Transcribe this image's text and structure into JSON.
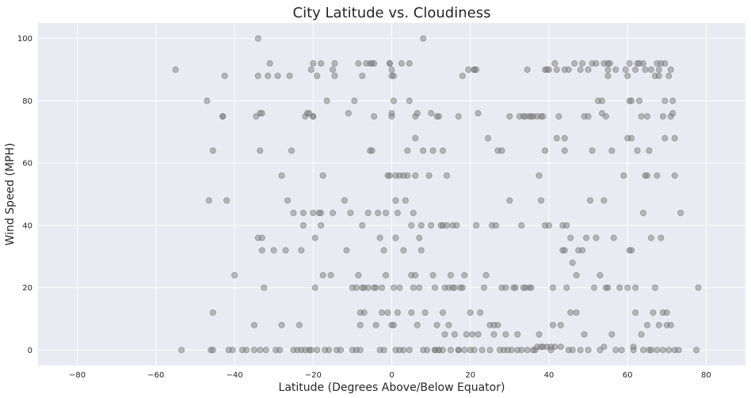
{
  "chart_data": {
    "type": "scatter",
    "title": "City Latitude vs. Cloudiness",
    "xlabel": "Latitude (Degrees Above/Below Equator)",
    "ylabel": "Wind Speed (MPH)",
    "xlim": [
      -90,
      90
    ],
    "ylim": [
      -5,
      105
    ],
    "xticks": [
      -80,
      -60,
      -40,
      -20,
      0,
      20,
      40,
      60,
      80
    ],
    "yticks": [
      0,
      20,
      40,
      60,
      80,
      100
    ],
    "grid": true,
    "colors": {
      "background": "#eaeaf2",
      "grid": "#ffffff",
      "marker": "#808080"
    },
    "points": [
      [
        -55,
        90
      ],
      [
        -53.5,
        0
      ],
      [
        -47,
        80
      ],
      [
        -46.5,
        48
      ],
      [
        -46,
        0
      ],
      [
        -45.5,
        0
      ],
      [
        -45.5,
        64
      ],
      [
        -45.5,
        12
      ],
      [
        -43,
        75
      ],
      [
        -43,
        75
      ],
      [
        -42.5,
        88
      ],
      [
        -42,
        48
      ],
      [
        -41.5,
        0
      ],
      [
        -40.5,
        0
      ],
      [
        -40,
        24
      ],
      [
        -38,
        0
      ],
      [
        -37,
        0
      ],
      [
        -35,
        0
      ],
      [
        -35,
        8
      ],
      [
        -34.5,
        75
      ],
      [
        -34,
        88
      ],
      [
        -34,
        36
      ],
      [
        -34,
        100
      ],
      [
        -33.5,
        0
      ],
      [
        -33.5,
        76
      ],
      [
        -33.5,
        64
      ],
      [
        -33,
        36
      ],
      [
        -33,
        76
      ],
      [
        -33,
        32
      ],
      [
        -32.5,
        20
      ],
      [
        -32,
        0
      ],
      [
        -31.5,
        88
      ],
      [
        -31,
        92
      ],
      [
        -30,
        32
      ],
      [
        -29.5,
        0
      ],
      [
        -29,
        88
      ],
      [
        -28.5,
        0
      ],
      [
        -28,
        8
      ],
      [
        -28,
        56
      ],
      [
        -27,
        32
      ],
      [
        -26.5,
        48
      ],
      [
        -26,
        88
      ],
      [
        -25.5,
        64
      ],
      [
        -25,
        44
      ],
      [
        -25,
        0
      ],
      [
        -24,
        0
      ],
      [
        -23.5,
        8
      ],
      [
        -23,
        0
      ],
      [
        -23,
        32
      ],
      [
        -22.5,
        40
      ],
      [
        -22.5,
        44
      ],
      [
        -22,
        75
      ],
      [
        -22,
        0
      ],
      [
        -21.5,
        76
      ],
      [
        -21,
        0
      ],
      [
        -21,
        76
      ],
      [
        -20.5,
        90
      ],
      [
        -20.5,
        0
      ],
      [
        -20,
        75
      ],
      [
        -20,
        92
      ],
      [
        -20,
        44
      ],
      [
        -20,
        75
      ],
      [
        -19.5,
        36
      ],
      [
        -19.5,
        20
      ],
      [
        -19,
        88
      ],
      [
        -19,
        0
      ],
      [
        -18.5,
        44
      ],
      [
        -18,
        92
      ],
      [
        -18,
        44
      ],
      [
        -18,
        40
      ],
      [
        -17.5,
        56
      ],
      [
        -17.5,
        24
      ],
      [
        -17,
        0
      ],
      [
        -16.5,
        80
      ],
      [
        -16,
        0
      ],
      [
        -15.5,
        24
      ],
      [
        -15,
        90
      ],
      [
        -15,
        44
      ],
      [
        -14.5,
        88
      ],
      [
        -14.5,
        92
      ],
      [
        -14,
        0
      ],
      [
        -13,
        0
      ],
      [
        -12,
        48
      ],
      [
        -11.5,
        32
      ],
      [
        -11,
        76
      ],
      [
        -10.5,
        44
      ],
      [
        -10,
        20
      ],
      [
        -10,
        0
      ],
      [
        -9.5,
        80
      ],
      [
        -9,
        0
      ],
      [
        -9,
        20
      ],
      [
        -8.5,
        24
      ],
      [
        -8.5,
        92
      ],
      [
        -8,
        0
      ],
      [
        -8,
        12
      ],
      [
        -8,
        8
      ],
      [
        -7.5,
        88
      ],
      [
        -7.5,
        20
      ],
      [
        -7.5,
        40
      ],
      [
        -7,
        12
      ],
      [
        -7,
        20
      ],
      [
        -6.5,
        92
      ],
      [
        -6,
        20
      ],
      [
        -6,
        44
      ],
      [
        -5.5,
        64
      ],
      [
        -5.5,
        92
      ],
      [
        -5,
        92
      ],
      [
        -5,
        64
      ],
      [
        -4.5,
        92
      ],
      [
        -4.5,
        20
      ],
      [
        -4.5,
        75
      ],
      [
        -4,
        20
      ],
      [
        -4,
        8
      ],
      [
        -3.5,
        44
      ],
      [
        -3,
        36
      ],
      [
        -3,
        0
      ],
      [
        -2.5,
        20
      ],
      [
        -2.5,
        12
      ],
      [
        -2,
        32
      ],
      [
        -2,
        0
      ],
      [
        -1.5,
        24
      ],
      [
        -1.5,
        44
      ],
      [
        -1,
        12
      ],
      [
        -1,
        56
      ],
      [
        -0.5,
        56
      ],
      [
        -0.5,
        92
      ],
      [
        -0.5,
        92
      ],
      [
        0,
        88
      ],
      [
        0,
        8
      ],
      [
        0,
        76
      ],
      [
        0,
        75
      ],
      [
        0,
        90
      ],
      [
        0.5,
        80
      ],
      [
        0.5,
        88
      ],
      [
        0.5,
        20
      ],
      [
        0.5,
        8
      ],
      [
        1,
        48
      ],
      [
        1,
        56
      ],
      [
        1,
        0
      ],
      [
        1,
        36
      ],
      [
        1.5,
        12
      ],
      [
        1.5,
        44
      ],
      [
        2,
        0
      ],
      [
        2,
        56
      ],
      [
        2,
        20
      ],
      [
        2.5,
        92
      ],
      [
        3,
        56
      ],
      [
        3,
        32
      ],
      [
        3,
        0
      ],
      [
        3.5,
        48
      ],
      [
        4,
        56
      ],
      [
        4,
        64
      ],
      [
        4.5,
        80
      ],
      [
        4.5,
        92
      ],
      [
        4.5,
        0
      ],
      [
        5,
        24
      ],
      [
        5,
        40
      ],
      [
        5,
        12
      ],
      [
        5.5,
        44
      ],
      [
        5.5,
        20
      ],
      [
        6,
        68
      ],
      [
        6,
        24
      ],
      [
        6,
        56
      ],
      [
        6,
        75
      ],
      [
        6.5,
        76
      ],
      [
        6.5,
        8
      ],
      [
        7,
        20
      ],
      [
        7,
        36
      ],
      [
        7.5,
        40
      ],
      [
        7.5,
        32
      ],
      [
        8,
        0
      ],
      [
        8,
        100
      ],
      [
        8,
        64
      ],
      [
        8.5,
        12
      ],
      [
        9,
        0
      ],
      [
        9.5,
        56
      ],
      [
        10,
        76
      ],
      [
        10,
        40
      ],
      [
        10.5,
        24
      ],
      [
        10.5,
        64
      ],
      [
        11,
        0
      ],
      [
        11,
        0
      ],
      [
        11,
        20
      ],
      [
        11.5,
        8
      ],
      [
        11.5,
        75
      ],
      [
        12,
        0
      ],
      [
        12,
        75
      ],
      [
        12,
        0
      ],
      [
        12.5,
        40
      ],
      [
        13,
        12
      ],
      [
        13,
        40
      ],
      [
        13,
        0
      ],
      [
        13,
        64
      ],
      [
        13.5,
        5
      ],
      [
        13.5,
        20
      ],
      [
        14,
        56
      ],
      [
        14,
        40
      ],
      [
        14.5,
        8
      ],
      [
        14.5,
        20
      ],
      [
        15,
        24
      ],
      [
        15,
        0
      ],
      [
        15.5,
        20
      ],
      [
        15.5,
        40
      ],
      [
        16,
        20
      ],
      [
        16,
        5
      ],
      [
        16.5,
        40
      ],
      [
        17,
        0
      ],
      [
        17,
        0
      ],
      [
        17,
        75
      ],
      [
        17.5,
        20
      ],
      [
        18,
        88
      ],
      [
        18,
        20
      ],
      [
        18.5,
        24
      ],
      [
        18.5,
        0
      ],
      [
        19,
        5
      ],
      [
        19.5,
        90
      ],
      [
        20,
        0
      ],
      [
        20,
        12
      ],
      [
        20.5,
        5
      ],
      [
        21,
        90
      ],
      [
        21,
        90
      ],
      [
        21,
        0
      ],
      [
        21.5,
        90
      ],
      [
        21.5,
        40
      ],
      [
        22,
        76
      ],
      [
        22,
        5
      ],
      [
        22.5,
        12
      ],
      [
        23,
        0
      ],
      [
        23.5,
        20
      ],
      [
        24,
        24
      ],
      [
        24.5,
        68
      ],
      [
        25,
        8
      ],
      [
        25,
        0
      ],
      [
        25.5,
        40
      ],
      [
        26,
        8
      ],
      [
        26,
        5
      ],
      [
        26.5,
        40
      ],
      [
        27,
        64
      ],
      [
        27,
        8
      ],
      [
        27.5,
        0
      ],
      [
        28,
        20
      ],
      [
        28,
        64
      ],
      [
        28.5,
        0
      ],
      [
        29,
        20
      ],
      [
        29,
        5
      ],
      [
        29.5,
        0
      ],
      [
        30,
        75
      ],
      [
        30,
        48
      ],
      [
        30.5,
        0
      ],
      [
        31,
        20
      ],
      [
        31.5,
        20
      ],
      [
        32,
        5
      ],
      [
        32,
        0
      ],
      [
        32.5,
        75
      ],
      [
        33,
        40
      ],
      [
        33,
        0
      ],
      [
        33.5,
        20
      ],
      [
        33.5,
        75
      ],
      [
        34,
        75
      ],
      [
        34,
        20
      ],
      [
        34.5,
        90
      ],
      [
        34.5,
        0
      ],
      [
        35,
        20
      ],
      [
        35,
        75
      ],
      [
        35.5,
        75
      ],
      [
        35.5,
        20
      ],
      [
        36,
        0
      ],
      [
        36,
        75
      ],
      [
        36.5,
        0
      ],
      [
        37,
        75
      ],
      [
        37,
        1
      ],
      [
        37.5,
        5
      ],
      [
        37.5,
        56
      ],
      [
        38,
        75
      ],
      [
        38,
        1
      ],
      [
        38,
        48
      ],
      [
        38.5,
        75
      ],
      [
        38.5,
        1
      ],
      [
        39,
        40
      ],
      [
        39,
        90
      ],
      [
        39,
        64
      ],
      [
        39.5,
        1
      ],
      [
        39.5,
        90
      ],
      [
        40,
        40
      ],
      [
        40,
        90
      ],
      [
        40.5,
        0
      ],
      [
        40.5,
        1
      ],
      [
        41,
        20
      ],
      [
        41,
        8
      ],
      [
        41.5,
        92
      ],
      [
        41.5,
        1
      ],
      [
        42,
        68
      ],
      [
        42,
        90
      ],
      [
        42.5,
        75
      ],
      [
        43,
        1
      ],
      [
        43,
        8
      ],
      [
        43.5,
        40
      ],
      [
        43.5,
        32
      ],
      [
        44,
        64
      ],
      [
        44,
        68
      ],
      [
        44,
        32
      ],
      [
        44,
        90
      ],
      [
        44.5,
        40
      ],
      [
        44.5,
        20
      ],
      [
        45,
        90
      ],
      [
        45,
        0
      ],
      [
        45.5,
        36
      ],
      [
        45.5,
        12
      ],
      [
        46,
        28
      ],
      [
        46,
        0
      ],
      [
        46.5,
        92
      ],
      [
        47,
        12
      ],
      [
        47,
        24
      ],
      [
        47.5,
        32
      ],
      [
        48,
        90
      ],
      [
        48,
        0
      ],
      [
        48.5,
        32
      ],
      [
        48.5,
        92
      ],
      [
        49,
        5
      ],
      [
        49,
        75
      ],
      [
        49.5,
        36
      ],
      [
        50,
        90
      ],
      [
        50,
        75
      ],
      [
        50,
        0
      ],
      [
        50.5,
        48
      ],
      [
        51,
        92
      ],
      [
        51,
        64
      ],
      [
        51.5,
        20
      ],
      [
        52,
        92
      ],
      [
        52,
        36
      ],
      [
        52.5,
        80
      ],
      [
        53,
        0
      ],
      [
        53,
        24
      ],
      [
        53.5,
        80
      ],
      [
        53.5,
        76
      ],
      [
        54,
        92
      ],
      [
        54,
        48
      ],
      [
        54,
        1
      ],
      [
        54.5,
        75
      ],
      [
        54.5,
        20
      ],
      [
        55,
        88
      ],
      [
        55,
        90
      ],
      [
        55,
        92
      ],
      [
        55,
        20
      ],
      [
        55.5,
        92
      ],
      [
        56,
        64
      ],
      [
        56,
        5
      ],
      [
        56.5,
        36
      ],
      [
        57,
        0
      ],
      [
        57,
        90
      ],
      [
        58,
        20
      ],
      [
        58.5,
        0
      ],
      [
        59,
        56
      ],
      [
        59.5,
        90
      ],
      [
        60,
        88
      ],
      [
        60,
        68
      ],
      [
        60,
        20
      ],
      [
        60.5,
        92
      ],
      [
        60.5,
        80
      ],
      [
        60.5,
        32
      ],
      [
        61,
        80
      ],
      [
        61,
        68
      ],
      [
        61,
        32
      ],
      [
        61.5,
        1
      ],
      [
        61.5,
        0
      ],
      [
        62,
        12
      ],
      [
        62,
        90
      ],
      [
        62,
        20
      ],
      [
        62.5,
        92
      ],
      [
        62.5,
        64
      ],
      [
        63,
        80
      ],
      [
        63,
        92
      ],
      [
        63.5,
        75
      ],
      [
        63.5,
        5
      ],
      [
        64,
        92
      ],
      [
        64,
        44
      ],
      [
        64,
        0
      ],
      [
        64.5,
        56
      ],
      [
        64.5,
        90
      ],
      [
        65,
        56
      ],
      [
        65,
        75
      ],
      [
        65,
        8
      ],
      [
        65.5,
        64
      ],
      [
        65.5,
        0
      ],
      [
        66,
        36
      ],
      [
        66,
        90
      ],
      [
        66,
        0
      ],
      [
        66.5,
        12
      ],
      [
        67,
        88
      ],
      [
        67,
        20
      ],
      [
        67.5,
        56
      ],
      [
        67.5,
        92
      ],
      [
        67.5,
        0
      ],
      [
        68,
        88
      ],
      [
        68,
        90
      ],
      [
        68,
        8
      ],
      [
        68.5,
        92
      ],
      [
        68.5,
        36
      ],
      [
        69,
        75
      ],
      [
        69,
        0
      ],
      [
        69,
        12
      ],
      [
        69.5,
        92
      ],
      [
        69.5,
        80
      ],
      [
        69.5,
        68
      ],
      [
        70,
        8
      ],
      [
        70,
        12
      ],
      [
        70.5,
        88
      ],
      [
        70.5,
        0
      ],
      [
        71,
        90
      ],
      [
        71,
        75
      ],
      [
        71,
        8
      ],
      [
        71.5,
        76
      ],
      [
        71.5,
        80
      ],
      [
        72,
        68
      ],
      [
        72,
        56
      ],
      [
        72,
        0
      ],
      [
        73,
        0
      ],
      [
        73.5,
        44
      ],
      [
        78,
        20
      ],
      [
        77.5,
        0
      ]
    ]
  }
}
